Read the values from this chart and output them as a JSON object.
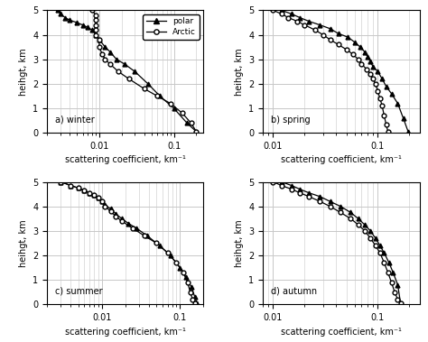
{
  "xlabel": "scattering coefficient, km⁻¹",
  "ylabel": "heihgt, km",
  "ylim": [
    0,
    5
  ],
  "yticks": [
    0,
    1,
    2,
    3,
    4,
    5
  ],
  "winter_polar_x": [
    0.0028,
    0.003,
    0.0035,
    0.004,
    0.005,
    0.006,
    0.007,
    0.008,
    0.009,
    0.01,
    0.012,
    0.014,
    0.017,
    0.022,
    0.03,
    0.045,
    0.065,
    0.1,
    0.15,
    0.2
  ],
  "winter_polar_y": [
    5.0,
    4.85,
    4.7,
    4.6,
    4.5,
    4.4,
    4.3,
    4.2,
    4.0,
    3.8,
    3.5,
    3.3,
    3.0,
    2.8,
    2.5,
    2.0,
    1.5,
    1.0,
    0.4,
    0.05
  ],
  "winter_arctic_x": [
    0.008,
    0.009,
    0.009,
    0.009,
    0.009,
    0.009,
    0.01,
    0.01,
    0.011,
    0.012,
    0.014,
    0.018,
    0.025,
    0.04,
    0.06,
    0.09,
    0.13,
    0.17,
    0.2
  ],
  "winter_arctic_y": [
    5.0,
    4.8,
    4.6,
    4.4,
    4.2,
    4.0,
    3.8,
    3.5,
    3.2,
    3.0,
    2.8,
    2.5,
    2.2,
    1.8,
    1.5,
    1.2,
    0.8,
    0.4,
    0.05
  ],
  "spring_polar_x": [
    0.012,
    0.015,
    0.018,
    0.022,
    0.028,
    0.035,
    0.042,
    0.052,
    0.06,
    0.068,
    0.075,
    0.08,
    0.085,
    0.09,
    0.1,
    0.11,
    0.12,
    0.135,
    0.155,
    0.175,
    0.195
  ],
  "spring_polar_y": [
    5.0,
    4.85,
    4.7,
    4.55,
    4.4,
    4.25,
    4.05,
    3.9,
    3.7,
    3.5,
    3.3,
    3.1,
    2.9,
    2.7,
    2.5,
    2.2,
    1.9,
    1.6,
    1.2,
    0.6,
    0.05
  ],
  "spring_arctic_x": [
    0.01,
    0.012,
    0.014,
    0.017,
    0.02,
    0.025,
    0.03,
    0.035,
    0.042,
    0.05,
    0.058,
    0.065,
    0.07,
    0.078,
    0.085,
    0.09,
    0.095,
    0.1,
    0.105,
    0.11,
    0.115,
    0.12,
    0.125
  ],
  "spring_arctic_y": [
    5.0,
    4.85,
    4.7,
    4.55,
    4.4,
    4.2,
    4.0,
    3.8,
    3.6,
    3.4,
    3.2,
    3.0,
    2.8,
    2.6,
    2.4,
    2.2,
    2.0,
    1.7,
    1.4,
    1.1,
    0.7,
    0.35,
    0.05
  ],
  "summer_polar_x": [
    0.003,
    0.004,
    0.005,
    0.006,
    0.007,
    0.008,
    0.009,
    0.01,
    0.011,
    0.013,
    0.015,
    0.018,
    0.022,
    0.028,
    0.038,
    0.055,
    0.075,
    0.1,
    0.12,
    0.14,
    0.155,
    0.165
  ],
  "summer_polar_y": [
    5.0,
    4.85,
    4.75,
    4.65,
    4.55,
    4.45,
    4.35,
    4.2,
    4.05,
    3.9,
    3.7,
    3.5,
    3.3,
    3.1,
    2.8,
    2.4,
    2.0,
    1.5,
    1.1,
    0.7,
    0.3,
    0.05
  ],
  "summer_arctic_x": [
    0.003,
    0.004,
    0.005,
    0.006,
    0.007,
    0.008,
    0.009,
    0.01,
    0.011,
    0.013,
    0.015,
    0.018,
    0.025,
    0.035,
    0.05,
    0.07,
    0.09,
    0.11,
    0.125,
    0.135,
    0.145,
    0.155
  ],
  "summer_arctic_y": [
    5.0,
    4.85,
    4.75,
    4.65,
    4.55,
    4.45,
    4.35,
    4.2,
    4.0,
    3.8,
    3.6,
    3.4,
    3.1,
    2.8,
    2.5,
    2.1,
    1.7,
    1.3,
    0.9,
    0.5,
    0.2,
    0.05
  ],
  "autumn_polar_x": [
    0.012,
    0.015,
    0.018,
    0.022,
    0.028,
    0.035,
    0.044,
    0.055,
    0.065,
    0.075,
    0.085,
    0.095,
    0.105,
    0.115,
    0.128,
    0.14,
    0.155,
    0.165
  ],
  "autumn_polar_y": [
    5.0,
    4.85,
    4.7,
    4.55,
    4.4,
    4.2,
    4.0,
    3.75,
    3.5,
    3.25,
    3.0,
    2.7,
    2.4,
    2.1,
    1.7,
    1.3,
    0.8,
    0.05
  ],
  "autumn_arctic_x": [
    0.01,
    0.012,
    0.015,
    0.018,
    0.022,
    0.028,
    0.035,
    0.044,
    0.055,
    0.065,
    0.075,
    0.085,
    0.095,
    0.105,
    0.115,
    0.125,
    0.135,
    0.145,
    0.155,
    0.165
  ],
  "autumn_arctic_y": [
    5.0,
    4.85,
    4.7,
    4.55,
    4.4,
    4.2,
    4.0,
    3.75,
    3.5,
    3.25,
    3.0,
    2.7,
    2.4,
    2.1,
    1.7,
    1.3,
    0.9,
    0.5,
    0.2,
    0.05
  ],
  "xlim_winter": [
    0.002,
    0.25
  ],
  "xlim_spring": [
    0.008,
    0.25
  ],
  "xlim_summer": [
    0.002,
    0.2
  ],
  "xlim_autumn": [
    0.008,
    0.25
  ],
  "bg_color": "#ffffff",
  "grid_color": "#c8c8c8",
  "font_size": 7,
  "marker_size": 3.5,
  "linewidth": 0.9
}
